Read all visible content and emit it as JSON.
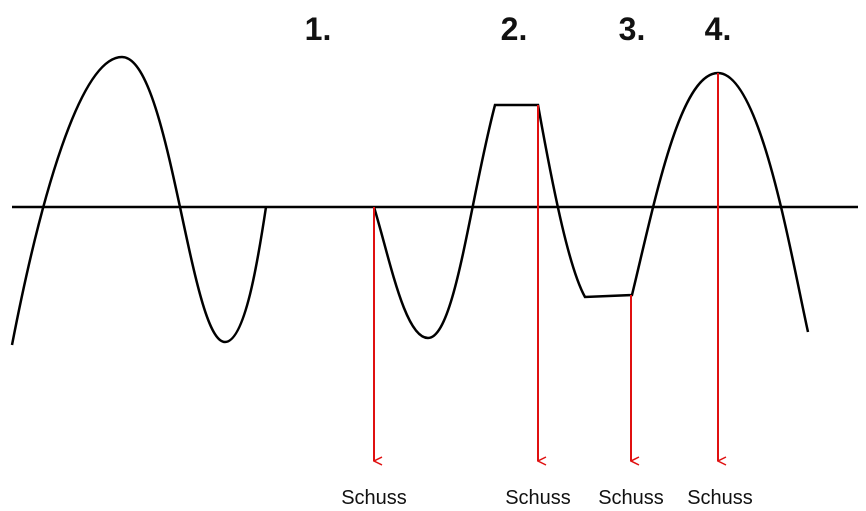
{
  "labels": [
    "1.",
    "2.",
    "3.",
    "4."
  ],
  "shots": [
    "Schuss",
    "Schuss",
    "Schuss",
    "Schuss"
  ]
}
